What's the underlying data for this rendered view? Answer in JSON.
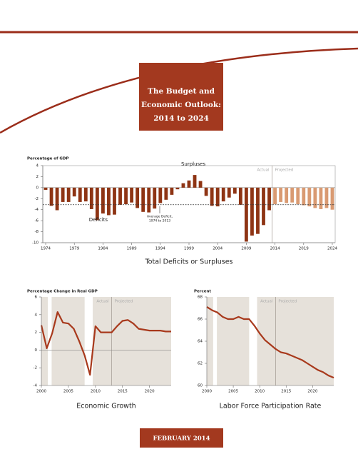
{
  "header": {
    "title": [
      "The Budget and",
      "Economic Outlook:",
      "2014 to 2024"
    ]
  },
  "chart_data": [
    {
      "type": "bar",
      "title": "Total Deficits or Surpluses",
      "y_label": "Percentage of GDP",
      "x": [
        1974,
        1975,
        1976,
        1977,
        1978,
        1979,
        1980,
        1981,
        1982,
        1983,
        1984,
        1985,
        1986,
        1987,
        1988,
        1989,
        1990,
        1991,
        1992,
        1993,
        1994,
        1995,
        1996,
        1997,
        1998,
        1999,
        2000,
        2001,
        2002,
        2003,
        2004,
        2005,
        2006,
        2007,
        2008,
        2009,
        2010,
        2011,
        2012,
        2013,
        2014,
        2015,
        2016,
        2017,
        2018,
        2019,
        2020,
        2021,
        2022,
        2023,
        2024
      ],
      "series": [
        {
          "name": "Actual",
          "color": "#8e3414",
          "values": [
            -0.4,
            -3.3,
            -4.1,
            -2.6,
            -2.6,
            -1.6,
            -2.6,
            -2.5,
            -3.9,
            -5.9,
            -4.7,
            -5.0,
            -4.9,
            -3.1,
            -3.0,
            -2.7,
            -3.7,
            -4.4,
            -4.5,
            -3.8,
            -2.8,
            -2.2,
            -1.3,
            -0.3,
            0.8,
            1.3,
            2.3,
            1.2,
            -1.5,
            -3.3,
            -3.4,
            -2.5,
            -1.8,
            -1.1,
            -3.1,
            -9.8,
            -8.7,
            -8.4,
            -6.8,
            -4.1,
            null,
            null,
            null,
            null,
            null,
            null,
            null,
            null,
            null,
            null,
            null
          ]
        },
        {
          "name": "Projected",
          "color": "#d99a72",
          "values": [
            null,
            null,
            null,
            null,
            null,
            null,
            null,
            null,
            null,
            null,
            null,
            null,
            null,
            null,
            null,
            null,
            null,
            null,
            null,
            null,
            null,
            null,
            null,
            null,
            null,
            null,
            null,
            null,
            null,
            null,
            null,
            null,
            null,
            null,
            null,
            null,
            null,
            null,
            null,
            null,
            -3.0,
            -2.6,
            -2.8,
            -2.7,
            -3.0,
            -3.2,
            -3.4,
            -3.7,
            -3.9,
            -3.7,
            -4.0
          ]
        }
      ],
      "xlim": [
        1974,
        2024
      ],
      "xticks": [
        1974,
        1979,
        1984,
        1989,
        1994,
        1999,
        2004,
        2009,
        2014,
        2019,
        2024
      ],
      "ylim": [
        -10,
        4
      ],
      "yticks": [
        -10,
        -8,
        -6,
        -4,
        -2,
        0,
        2,
        4
      ],
      "projection_start": 2013.5,
      "average_value": -3.1,
      "annotations": {
        "surpluses": "Surpluses",
        "deficits": "Deficits",
        "average": [
          "Average Deficit,",
          "1974 to 2013"
        ]
      }
    },
    {
      "type": "line",
      "title": "Economic Growth",
      "y_label": "Percentage Change in Real GDP",
      "color": "#a8391c",
      "x": [
        2000,
        2001,
        2002,
        2003,
        2004,
        2005,
        2006,
        2007,
        2008,
        2009,
        2010,
        2011,
        2012,
        2013,
        2014,
        2015,
        2016,
        2017,
        2018,
        2019,
        2020,
        2021,
        2022,
        2023,
        2024
      ],
      "values": [
        2.8,
        0.2,
        1.9,
        4.3,
        3.1,
        3.0,
        2.4,
        1.0,
        -0.6,
        -2.8,
        2.7,
        2.0,
        2.0,
        2.0,
        2.7,
        3.3,
        3.4,
        3.0,
        2.4,
        2.3,
        2.2,
        2.2,
        2.2,
        2.1,
        2.1
      ],
      "xlim": [
        2000,
        2024
      ],
      "xticks": [
        2000,
        2005,
        2010,
        2015,
        2020
      ],
      "ylim": [
        -4,
        6
      ],
      "yticks": [
        -4,
        -2,
        0,
        2,
        4,
        6
      ],
      "shaded_periods": [
        [
          2001.2,
          2001.9
        ],
        [
          2008.0,
          2009.5
        ]
      ],
      "projection_start": 2013,
      "region_labels": [
        "Actual",
        "Projected"
      ]
    },
    {
      "type": "line",
      "title": "Labor Force Participation Rate",
      "y_label": "Percent",
      "color": "#a8391c",
      "x": [
        2000,
        2001,
        2002,
        2003,
        2004,
        2005,
        2006,
        2007,
        2008,
        2009,
        2010,
        2011,
        2012,
        2013,
        2014,
        2015,
        2016,
        2017,
        2018,
        2019,
        2020,
        2021,
        2022,
        2023,
        2024
      ],
      "values": [
        67.1,
        66.8,
        66.6,
        66.2,
        66.0,
        66.0,
        66.2,
        66.0,
        66.0,
        65.4,
        64.7,
        64.1,
        63.7,
        63.3,
        63.0,
        62.9,
        62.7,
        62.5,
        62.3,
        62.0,
        61.7,
        61.4,
        61.2,
        60.9,
        60.7
      ],
      "xlim": [
        2000,
        2024
      ],
      "xticks": [
        2000,
        2005,
        2010,
        2015,
        2020
      ],
      "ylim": [
        60,
        68
      ],
      "yticks": [
        60,
        62,
        64,
        66,
        68
      ],
      "shaded_periods": [
        [
          2001.2,
          2001.9
        ],
        [
          2008.0,
          2009.5
        ]
      ],
      "projection_start": 2013,
      "region_labels": [
        "Actual",
        "Projected"
      ]
    }
  ],
  "footer": {
    "date": "FEBRUARY 2014"
  }
}
